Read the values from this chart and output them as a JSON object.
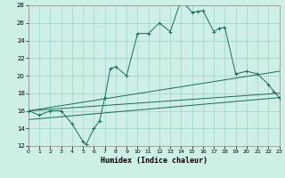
{
  "title": "",
  "xlabel": "Humidex (Indice chaleur)",
  "xlim": [
    0,
    23
  ],
  "ylim": [
    12,
    28
  ],
  "xticks": [
    0,
    1,
    2,
    3,
    4,
    5,
    6,
    7,
    8,
    9,
    10,
    11,
    12,
    13,
    14,
    15,
    16,
    17,
    18,
    19,
    20,
    21,
    22,
    23
  ],
  "yticks": [
    12,
    14,
    16,
    18,
    20,
    22,
    24,
    26,
    28
  ],
  "bg_color": "#ceeee8",
  "grid_color": "#a0d4cc",
  "line_color": "#1a6b5a",
  "main_line": [
    0,
    16,
    1,
    15.5,
    2,
    16,
    3,
    16,
    4,
    14.5,
    5,
    12.5,
    5.3,
    12.2,
    6,
    14,
    6.5,
    14.8,
    7,
    17.5,
    7.5,
    20.8,
    8,
    21,
    9,
    20,
    10,
    24.8,
    11,
    24.8,
    12,
    26,
    13,
    25,
    14,
    28.6,
    15,
    27.2,
    15.5,
    27.3,
    16,
    27.4,
    17,
    25,
    17.5,
    25.4,
    18,
    25.5,
    19,
    20.2,
    20,
    20.5,
    21,
    20.2,
    22,
    19,
    22.5,
    18.2,
    23,
    17.5
  ],
  "line2": [
    0,
    16,
    23,
    20.5
  ],
  "line3": [
    0,
    16,
    23,
    18
  ],
  "line4": [
    0,
    15,
    23,
    17.5
  ]
}
